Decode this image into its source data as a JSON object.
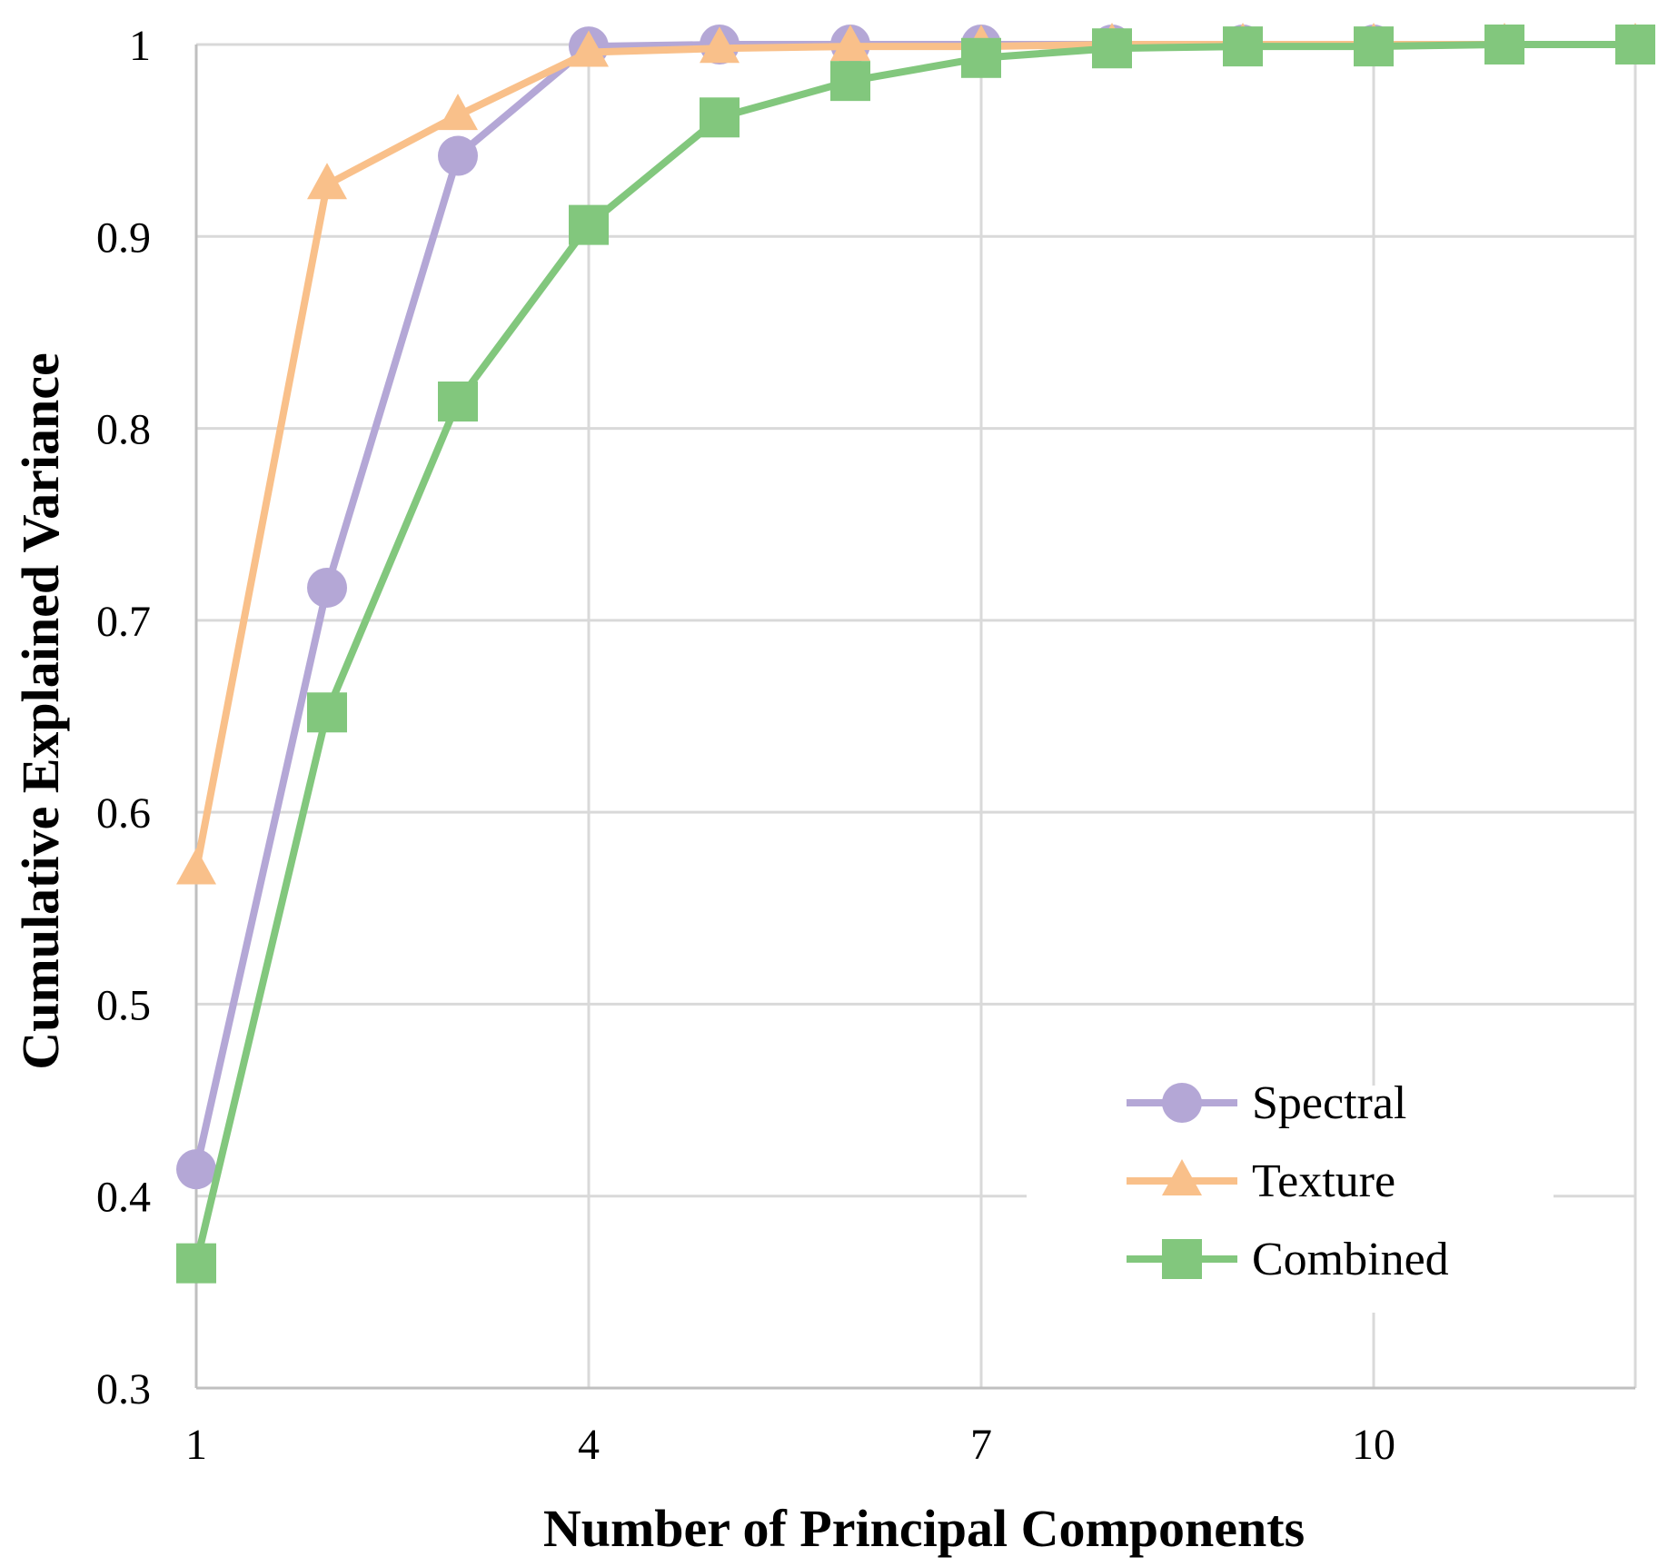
{
  "chart_data": {
    "type": "line",
    "title": "",
    "xlabel": "Number of Principal Components",
    "ylabel": "Cumulative Explained Variance",
    "xlim": [
      1,
      12
    ],
    "ylim": [
      0.3,
      1
    ],
    "xticks": [
      1,
      4,
      7,
      10
    ],
    "yticks": [
      0.3,
      0.4,
      0.5,
      0.6,
      0.7,
      0.8,
      0.9,
      1
    ],
    "ytick_labels": [
      "0.3",
      "0.4",
      "0.5",
      "0.6",
      "0.7",
      "0.8",
      "0.9",
      "1"
    ],
    "xtick_labels": [
      "1",
      "4",
      "7",
      "10"
    ],
    "grid": true,
    "legend_position": "bottom-right",
    "x": [
      1,
      2,
      3,
      4,
      5,
      6,
      7,
      8,
      9,
      10,
      11,
      12
    ],
    "series": [
      {
        "name": "Spectral",
        "marker": "circle",
        "color": "#B4A7D6",
        "values": [
          0.414,
          0.717,
          0.942,
          0.999,
          1.0,
          1.0,
          1.0,
          1.0,
          1.0,
          1.0,
          1.0,
          1.0
        ]
      },
      {
        "name": "Texture",
        "marker": "triangle",
        "color": "#F9C08A",
        "values": [
          0.57,
          0.927,
          0.963,
          0.996,
          0.998,
          0.999,
          0.999,
          1.0,
          1.0,
          1.0,
          1.0,
          1.0
        ]
      },
      {
        "name": "Combined",
        "marker": "square",
        "color": "#82C77D",
        "values": [
          0.365,
          0.652,
          0.814,
          0.906,
          0.962,
          0.981,
          0.993,
          0.998,
          0.999,
          0.999,
          1.0,
          1.0
        ]
      }
    ]
  }
}
